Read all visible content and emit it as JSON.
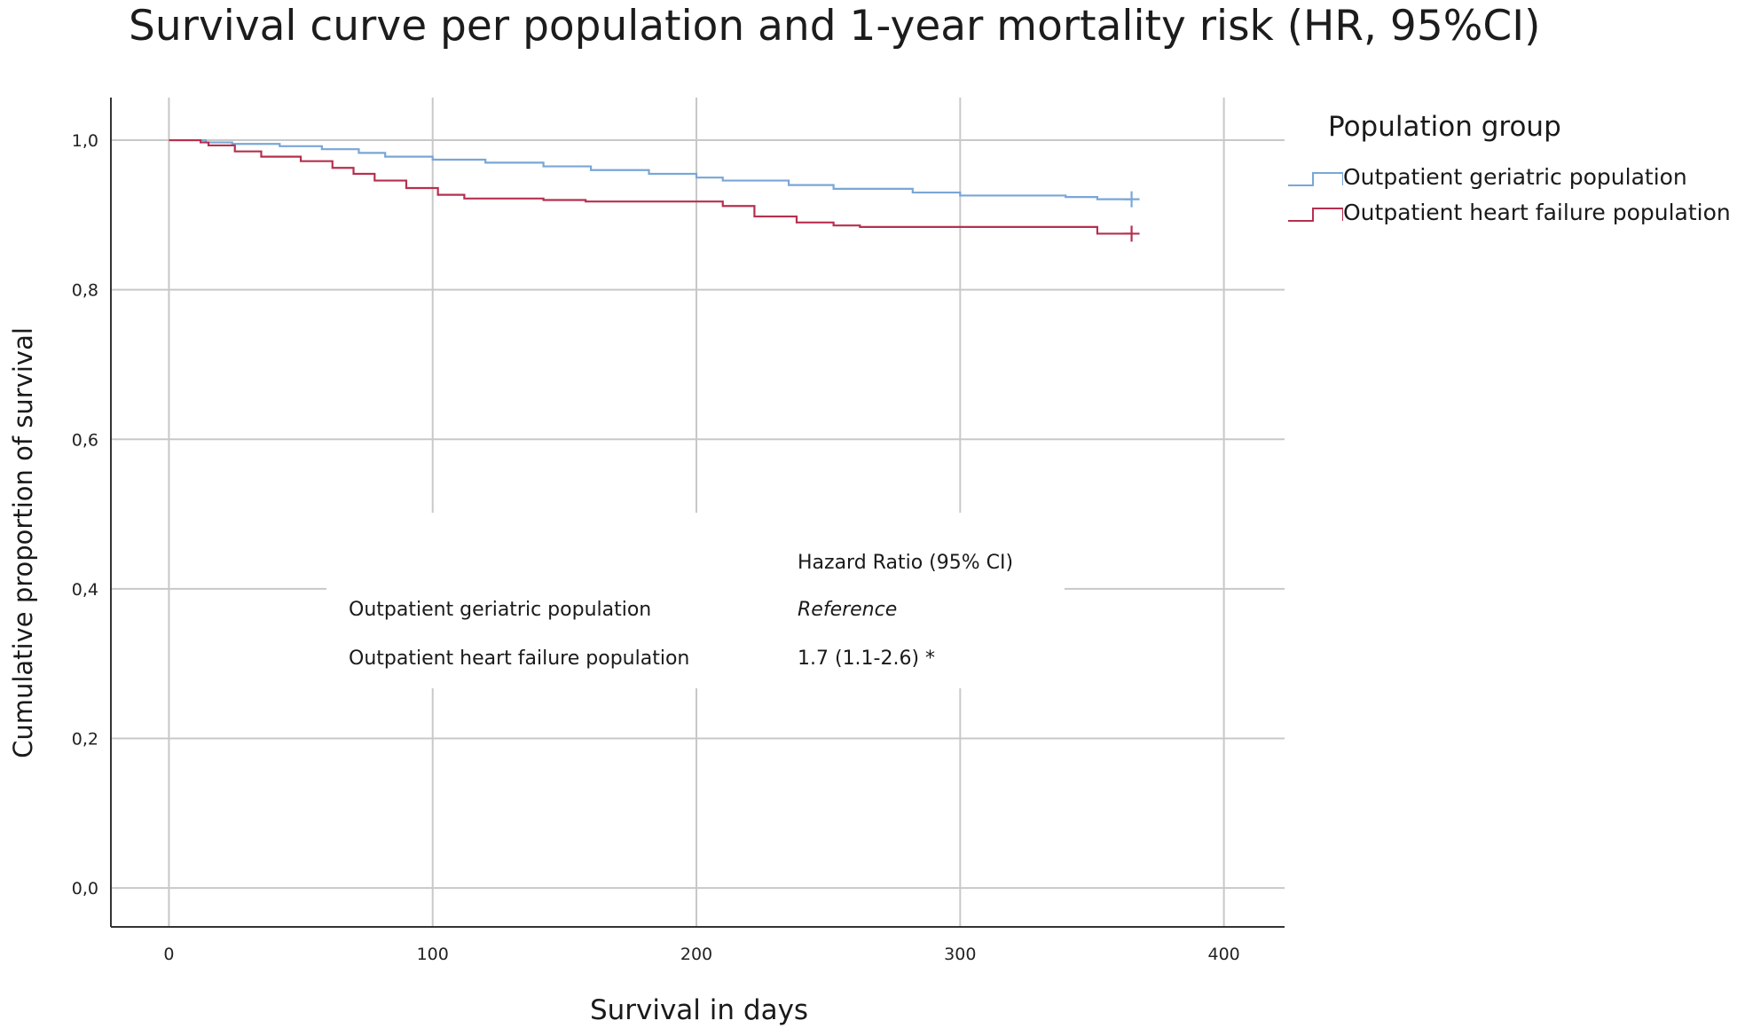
{
  "title": "Survival curve per population and 1-year mortality risk (HR, 95%CI)",
  "legend": {
    "title": "Population group",
    "items": [
      {
        "label": "Outpatient geriatric population",
        "color": "#7aa6d6"
      },
      {
        "label": "Outpatient heart failure population",
        "color": "#b5304f"
      }
    ]
  },
  "hr_table": {
    "header": "Hazard Ratio (95% CI)",
    "rows": [
      {
        "label": "Outpatient geriatric population",
        "value": "Reference",
        "italic": true
      },
      {
        "label": "Outpatient heart failure population",
        "value": "1.7 (1.1-2.6) *",
        "italic": false
      }
    ]
  },
  "chart_data": {
    "type": "line",
    "step": true,
    "xlabel": "Survival in days",
    "ylabel": "Cumulative proportion of survival",
    "xlim": [
      -22,
      423
    ],
    "ylim": [
      -0.052,
      1.057
    ],
    "xticks": [
      0,
      100,
      200,
      300,
      400
    ],
    "xtick_labels": [
      "0",
      "100",
      "200",
      "300",
      "400"
    ],
    "yticks": [
      0.0,
      0.2,
      0.4,
      0.6,
      0.8,
      1.0
    ],
    "ytick_labels": [
      "0,0",
      "0,2",
      "0,4",
      "0,6",
      "0,8",
      "1,0"
    ],
    "grid": true,
    "legend_position": "top-right outside",
    "series": [
      {
        "name": "Outpatient geriatric population",
        "color": "#7aa6d6",
        "x": [
          0,
          14,
          24,
          42,
          58,
          72,
          82,
          100,
          120,
          142,
          160,
          182,
          200,
          210,
          235,
          252,
          282,
          300,
          340,
          352,
          365
        ],
        "y": [
          1.0,
          0.997,
          0.995,
          0.992,
          0.988,
          0.983,
          0.978,
          0.974,
          0.97,
          0.965,
          0.96,
          0.955,
          0.95,
          0.946,
          0.94,
          0.935,
          0.93,
          0.926,
          0.924,
          0.921,
          0.921
        ],
        "censor": [
          [
            365,
            0.921
          ]
        ]
      },
      {
        "name": "Outpatient heart failure population",
        "color": "#b5304f",
        "x": [
          0,
          12,
          15,
          25,
          35,
          50,
          62,
          70,
          78,
          90,
          102,
          112,
          125,
          142,
          158,
          195,
          210,
          222,
          238,
          252,
          262,
          275,
          300,
          320,
          352,
          365
        ],
        "y": [
          1.0,
          0.997,
          0.993,
          0.985,
          0.978,
          0.972,
          0.963,
          0.955,
          0.946,
          0.936,
          0.927,
          0.922,
          0.922,
          0.92,
          0.918,
          0.918,
          0.912,
          0.898,
          0.89,
          0.886,
          0.884,
          0.884,
          0.884,
          0.884,
          0.875,
          0.875
        ],
        "censor": [
          [
            365,
            0.875
          ]
        ]
      }
    ]
  }
}
